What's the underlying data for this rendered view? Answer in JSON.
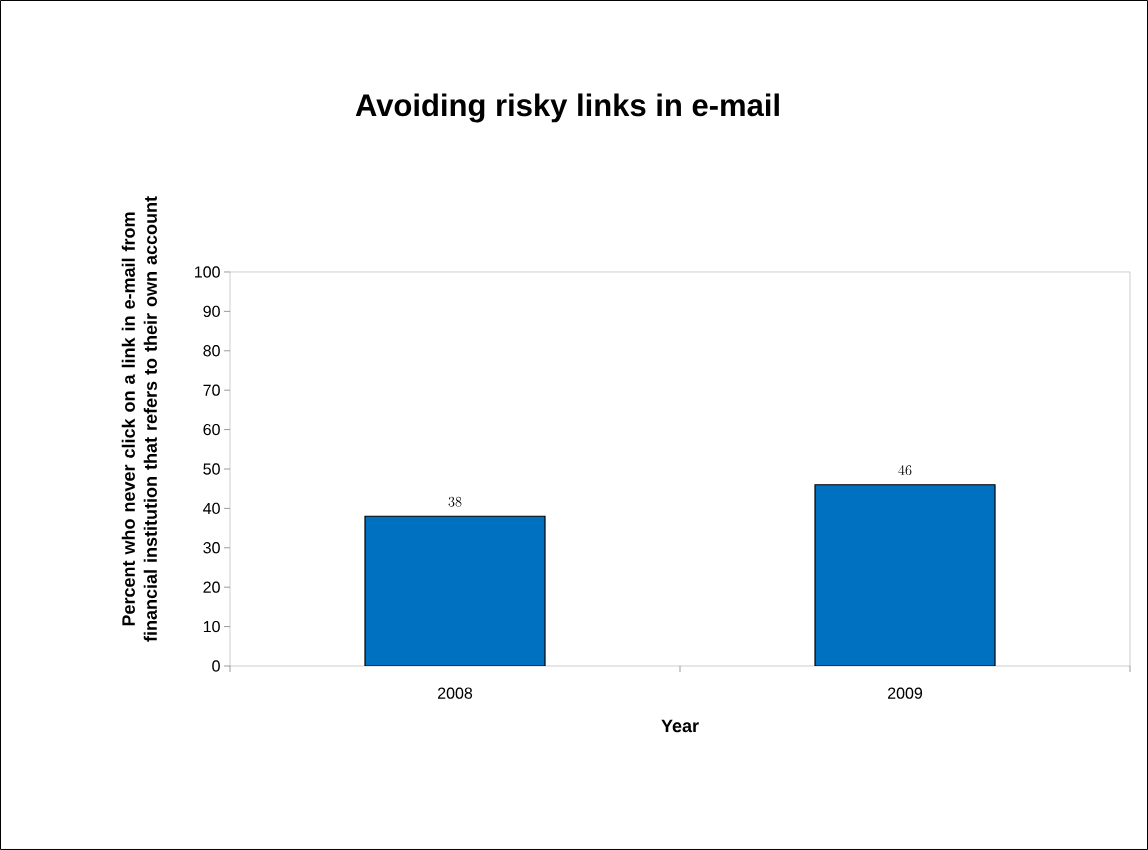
{
  "chart_data": {
    "type": "bar",
    "title": "Avoiding risky links in e-mail",
    "xlabel": "Year",
    "ylabel": "Percent who never click on a link in e-mail from financial institution that refers to their own account",
    "categories": [
      "2008",
      "2009"
    ],
    "values": [
      38,
      46
    ],
    "color": "#0070c0",
    "ylim": [
      0,
      100
    ],
    "yticks": [
      0,
      10,
      20,
      30,
      40,
      50,
      60,
      70,
      80,
      90,
      100
    ],
    "data_labels": true
  }
}
